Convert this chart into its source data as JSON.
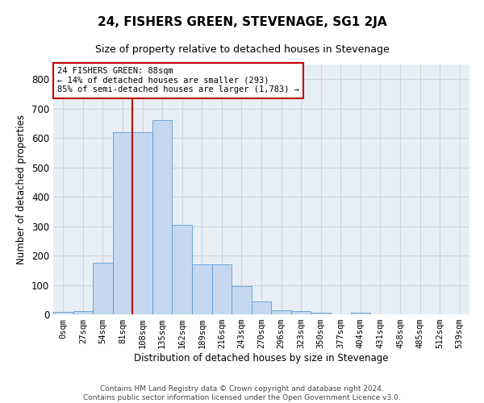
{
  "title": "24, FISHERS GREEN, STEVENAGE, SG1 2JA",
  "subtitle": "Size of property relative to detached houses in Stevenage",
  "xlabel": "Distribution of detached houses by size in Stevenage",
  "ylabel": "Number of detached properties",
  "footer_line1": "Contains HM Land Registry data © Crown copyright and database right 2024.",
  "footer_line2": "Contains public sector information licensed under the Open Government Licence v3.0.",
  "tick_labels": [
    "0sqm",
    "27sqm",
    "54sqm",
    "81sqm",
    "108sqm",
    "135sqm",
    "162sqm",
    "189sqm",
    "216sqm",
    "243sqm",
    "270sqm",
    "296sqm",
    "323sqm",
    "350sqm",
    "377sqm",
    "404sqm",
    "431sqm",
    "458sqm",
    "485sqm",
    "512sqm",
    "539sqm"
  ],
  "bar_values": [
    7,
    12,
    175,
    620,
    620,
    660,
    305,
    170,
    170,
    97,
    43,
    15,
    10,
    5,
    0,
    5,
    0,
    0,
    0,
    0,
    0
  ],
  "bar_color": "#c5d8ef",
  "bar_edge_color": "#5b9bd5",
  "vline_x": 3.5,
  "vline_color": "#c00000",
  "annotation_box_color": "#c00000",
  "annotation_text_line1": "24 FISHERS GREEN: 88sqm",
  "annotation_text_line2": "← 14% of detached houses are smaller (293)",
  "annotation_text_line3": "85% of semi-detached houses are larger (1,783) →",
  "ylim": [
    0,
    850
  ],
  "yticks": [
    0,
    100,
    200,
    300,
    400,
    500,
    600,
    700,
    800
  ],
  "grid_color": "#cdd5e0",
  "background_color": "#e8eef5",
  "title_fontsize": 11,
  "subtitle_fontsize": 9,
  "ylabel_fontsize": 8.5,
  "xlabel_fontsize": 8.5,
  "tick_fontsize": 7.5,
  "ytick_fontsize": 8.5,
  "footer_fontsize": 6.5
}
